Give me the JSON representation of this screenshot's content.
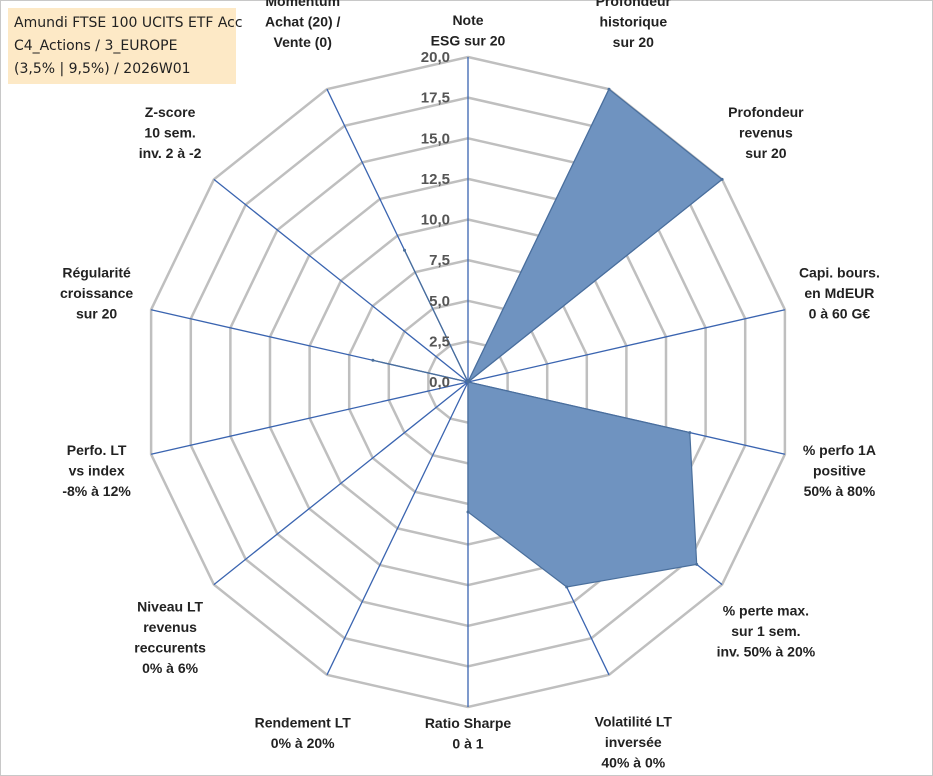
{
  "chart_data": {
    "type": "radar",
    "title_lines": [
      "Amundi FTSE 100 UCITS ETF Acc",
      "C4_Actions / 3_EUROPE",
      "(3,5% | 9,5%) / 2026W01"
    ],
    "r_range": [
      0,
      20
    ],
    "r_ticks": [
      "0,0",
      "2,5",
      "5,0",
      "7,5",
      "10,0",
      "12,5",
      "15,0",
      "17,5",
      "20,0"
    ],
    "axes": [
      {
        "label": [
          "Note",
          "ESG sur 20"
        ],
        "value": 0
      },
      {
        "label": [
          "Profondeur",
          "historique",
          "sur 20"
        ],
        "value": 20
      },
      {
        "label": [
          "Profondeur",
          "revenus",
          "sur 20"
        ],
        "value": 20
      },
      {
        "label": [
          "Capi. bours.",
          "en MdEUR",
          "0 à 60 G€"
        ],
        "value": 0
      },
      {
        "label": [
          "% perfo 1A",
          "positive",
          "50% à 80%"
        ],
        "value": 14
      },
      {
        "label": [
          "% perte max.",
          "sur 1 sem.",
          "inv. 50% à 20%"
        ],
        "value": 18
      },
      {
        "label": [
          "Volatilité LT",
          "inversée",
          "40% à 0%"
        ],
        "value": 14
      },
      {
        "label": [
          "Ratio Sharpe",
          "0 à 1"
        ],
        "value": 8
      },
      {
        "label": [
          "Rendement LT",
          "0% à 20%"
        ],
        "value": 0
      },
      {
        "label": [
          "Niveau LT",
          "revenus",
          "reccurents",
          "0% à 6%"
        ],
        "value": 0
      },
      {
        "label": [
          "Perfo. LT",
          "vs index",
          "-8% à 12%"
        ],
        "value": 0
      },
      {
        "label": [
          "Régularité",
          "croissance",
          "sur 20"
        ],
        "value": 6
      },
      {
        "label": [
          "Z-score",
          "10 sem.",
          "inv. 2 à -2"
        ],
        "value": 0
      },
      {
        "label": [
          "Momentum",
          "Achat (20) /",
          "Vente (0)"
        ],
        "value": 9
      }
    ],
    "fill_color": "#6f93c0",
    "edge_color": "#4a6f9c",
    "axis_color": "#3a64b0",
    "grid_color": "#bfbfbf",
    "grid": true
  }
}
